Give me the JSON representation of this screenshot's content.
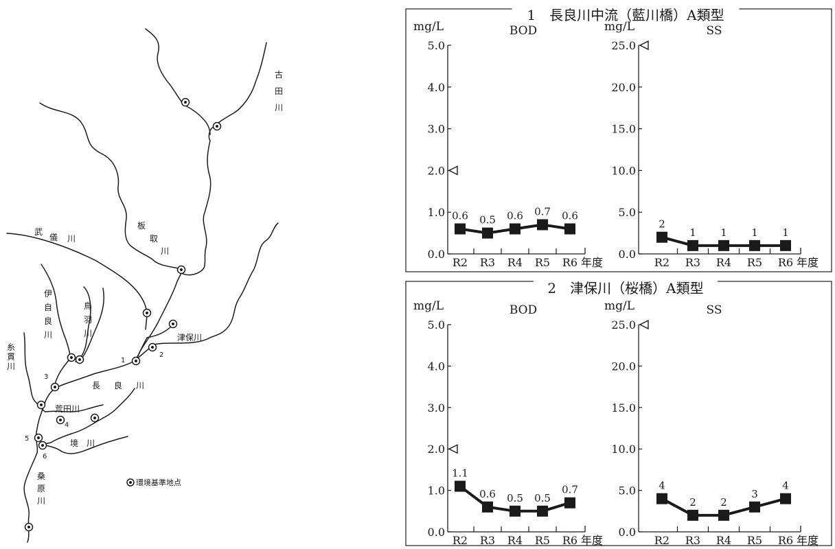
{
  "map": {
    "rivers": [
      "古",
      "田",
      "川",
      "板",
      "取",
      "川",
      "武",
      "儀",
      "川",
      "伊",
      "自",
      "良",
      "川",
      "鳥",
      "羽",
      "川",
      "津保川",
      "糸",
      "貫",
      "川",
      "長",
      "良",
      "川",
      "荒田川",
      "境",
      "川",
      "桑",
      "原",
      "川"
    ],
    "station_numbers": [
      "1",
      "2",
      "3",
      "4",
      "5",
      "6"
    ],
    "legend": "環境基準地点"
  },
  "chart_data": [
    {
      "type": "line",
      "panel_title": "1　長良川中流（藍川橋）A類型",
      "subplots": [
        {
          "name": "BOD",
          "unit": "mg/L",
          "categories": [
            "R2",
            "R3",
            "R4",
            "R5",
            "R6"
          ],
          "x_suffix": "年度",
          "values": [
            0.6,
            0.5,
            0.6,
            0.7,
            0.6
          ],
          "labels": [
            "0.6",
            "0.5",
            "0.6",
            "0.7",
            "0.6"
          ],
          "yticks": [
            "0.0",
            "1.0",
            "2.0",
            "3.0",
            "4.0",
            "5.0"
          ],
          "ylim": [
            0,
            5
          ],
          "standard": 2.0
        },
        {
          "name": "SS",
          "unit": "mg/L",
          "categories": [
            "R2",
            "R3",
            "R4",
            "R5",
            "R6"
          ],
          "x_suffix": "年度",
          "values": [
            2,
            1,
            1,
            1,
            1
          ],
          "labels": [
            "2",
            "1",
            "1",
            "1",
            "1"
          ],
          "yticks": [
            "0.0",
            "5.0",
            "10.0",
            "15.0",
            "20.0",
            "25.0"
          ],
          "ylim": [
            0,
            25
          ],
          "standard": 25.0
        }
      ]
    },
    {
      "type": "line",
      "panel_title": "2　津保川（桜橋）A類型",
      "subplots": [
        {
          "name": "BOD",
          "unit": "mg/L",
          "categories": [
            "R2",
            "R3",
            "R4",
            "R5",
            "R6"
          ],
          "x_suffix": "年度",
          "values": [
            1.1,
            0.6,
            0.5,
            0.5,
            0.7
          ],
          "labels": [
            "1.1",
            "0.6",
            "0.5",
            "0.5",
            "0.7"
          ],
          "yticks": [
            "0.0",
            "1.0",
            "2.0",
            "3.0",
            "4.0",
            "5.0"
          ],
          "ylim": [
            0,
            5
          ],
          "standard": 2.0
        },
        {
          "name": "SS",
          "unit": "mg/L",
          "categories": [
            "R2",
            "R3",
            "R4",
            "R5",
            "R6"
          ],
          "x_suffix": "年度",
          "values": [
            4,
            2,
            2,
            3,
            4
          ],
          "labels": [
            "4",
            "2",
            "2",
            "3",
            "4"
          ],
          "yticks": [
            "0.0",
            "5.0",
            "10.0",
            "15.0",
            "20.0",
            "25.0"
          ],
          "ylim": [
            0,
            25
          ],
          "standard": 25.0
        }
      ]
    }
  ]
}
